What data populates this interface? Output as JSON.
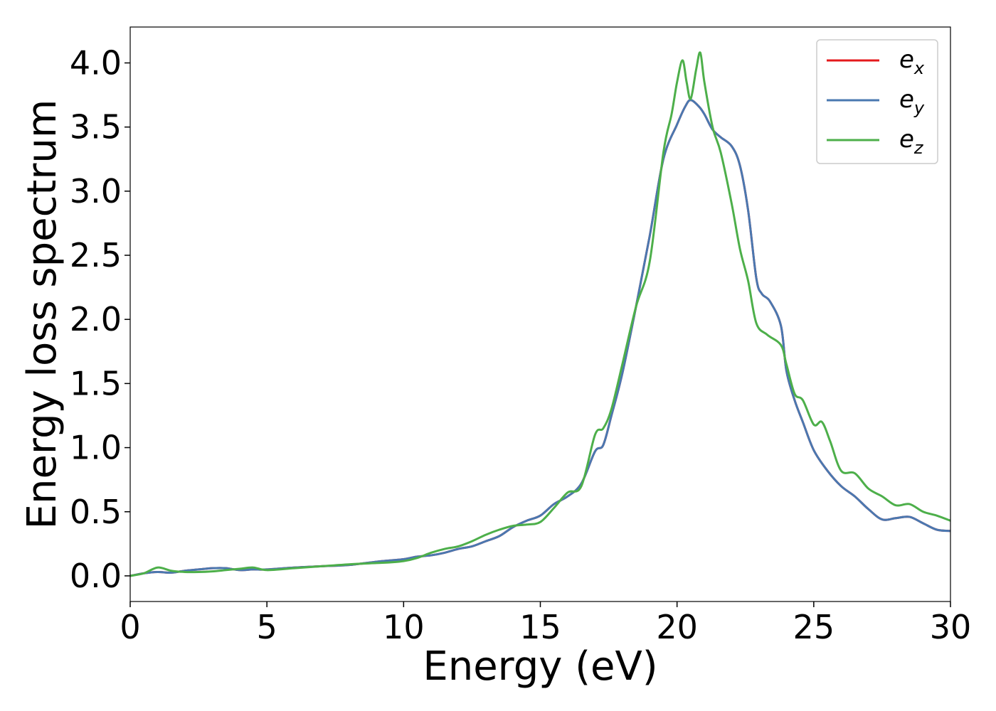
{
  "chart_data": {
    "type": "line",
    "title": "",
    "xlabel": "Energy (eV)",
    "ylabel": "Energy loss spectrum",
    "xlim": [
      0,
      30
    ],
    "ylim": [
      -0.2,
      4.28
    ],
    "xticks": [
      0,
      5,
      10,
      15,
      20,
      25,
      30
    ],
    "xtick_labels": [
      "0",
      "5",
      "10",
      "15",
      "20",
      "25",
      "30"
    ],
    "yticks": [
      0.0,
      0.5,
      1.0,
      1.5,
      2.0,
      2.5,
      3.0,
      3.5,
      4.0
    ],
    "ytick_labels": [
      "0.0",
      "0.5",
      "1.0",
      "1.5",
      "2.0",
      "2.5",
      "3.0",
      "3.5",
      "4.0"
    ],
    "grid": false,
    "legend_position": "top-right",
    "series": [
      {
        "name": "e",
        "subscript": "x",
        "color": "#e41a1c",
        "x": [
          0,
          0.5,
          1,
          1.5,
          2,
          2.5,
          3,
          3.5,
          4,
          4.5,
          5,
          6,
          7,
          8,
          9,
          9.5,
          10,
          10.5,
          11,
          11.5,
          12,
          12.5,
          13,
          13.5,
          14,
          14.5,
          15,
          15.5,
          16,
          16.5,
          17,
          17.3,
          17.6,
          18,
          18.5,
          19,
          19.5,
          20,
          20.3,
          20.5,
          20.8,
          21,
          21.3,
          21.6,
          22,
          22.3,
          22.6,
          22.9,
          23.1,
          23.4,
          23.8,
          24,
          24.3,
          24.6,
          25,
          25.5,
          26,
          26.5,
          27,
          27.5,
          28,
          28.5,
          29,
          29.5,
          30
        ],
        "y": [
          0.0,
          0.02,
          0.03,
          0.025,
          0.04,
          0.05,
          0.06,
          0.06,
          0.045,
          0.05,
          0.05,
          0.065,
          0.075,
          0.085,
          0.11,
          0.12,
          0.13,
          0.15,
          0.16,
          0.18,
          0.21,
          0.23,
          0.27,
          0.31,
          0.38,
          0.43,
          0.47,
          0.56,
          0.62,
          0.72,
          0.97,
          1.02,
          1.25,
          1.58,
          2.1,
          2.65,
          3.25,
          3.52,
          3.66,
          3.71,
          3.66,
          3.6,
          3.48,
          3.42,
          3.35,
          3.2,
          2.85,
          2.32,
          2.2,
          2.14,
          1.95,
          1.6,
          1.37,
          1.2,
          0.98,
          0.82,
          0.7,
          0.62,
          0.52,
          0.44,
          0.45,
          0.46,
          0.41,
          0.36,
          0.35
        ]
      },
      {
        "name": "e",
        "subscript": "y",
        "color": "#4a78b0",
        "x": [
          0,
          0.5,
          1,
          1.5,
          2,
          2.5,
          3,
          3.5,
          4,
          4.5,
          5,
          6,
          7,
          8,
          9,
          9.5,
          10,
          10.5,
          11,
          11.5,
          12,
          12.5,
          13,
          13.5,
          14,
          14.5,
          15,
          15.5,
          16,
          16.5,
          17,
          17.3,
          17.6,
          18,
          18.5,
          19,
          19.5,
          20,
          20.3,
          20.5,
          20.8,
          21,
          21.3,
          21.6,
          22,
          22.3,
          22.6,
          22.9,
          23.1,
          23.4,
          23.8,
          24,
          24.3,
          24.6,
          25,
          25.5,
          26,
          26.5,
          27,
          27.5,
          28,
          28.5,
          29,
          29.5,
          30
        ],
        "y": [
          0.0,
          0.02,
          0.03,
          0.025,
          0.04,
          0.05,
          0.06,
          0.06,
          0.045,
          0.05,
          0.05,
          0.065,
          0.075,
          0.085,
          0.11,
          0.12,
          0.13,
          0.15,
          0.16,
          0.18,
          0.21,
          0.23,
          0.27,
          0.31,
          0.38,
          0.43,
          0.47,
          0.56,
          0.62,
          0.72,
          0.97,
          1.02,
          1.25,
          1.58,
          2.1,
          2.65,
          3.25,
          3.52,
          3.66,
          3.71,
          3.66,
          3.6,
          3.48,
          3.42,
          3.35,
          3.2,
          2.85,
          2.32,
          2.2,
          2.14,
          1.95,
          1.6,
          1.37,
          1.2,
          0.98,
          0.82,
          0.7,
          0.62,
          0.52,
          0.44,
          0.45,
          0.46,
          0.41,
          0.36,
          0.35
        ]
      },
      {
        "name": "e",
        "subscript": "z",
        "color": "#4daf4a",
        "x": [
          0,
          0.5,
          1,
          1.5,
          2,
          2.5,
          3,
          3.5,
          4,
          4.5,
          5,
          6,
          7,
          8,
          9,
          9.5,
          10,
          10.5,
          11,
          11.5,
          12,
          12.5,
          13,
          13.5,
          14,
          14.5,
          15,
          15.5,
          16,
          16.5,
          17,
          17.3,
          17.6,
          18,
          18.5,
          19,
          19.5,
          19.8,
          20,
          20.2,
          20.35,
          20.5,
          20.7,
          20.85,
          21,
          21.3,
          21.6,
          22,
          22.3,
          22.6,
          22.9,
          23.3,
          23.8,
          24,
          24.3,
          24.6,
          25,
          25.3,
          25.6,
          26,
          26.5,
          27,
          27.5,
          28,
          28.5,
          29,
          29.5,
          30
        ],
        "y": [
          0.0,
          0.02,
          0.065,
          0.04,
          0.03,
          0.03,
          0.035,
          0.045,
          0.055,
          0.065,
          0.045,
          0.06,
          0.075,
          0.09,
          0.1,
          0.105,
          0.115,
          0.14,
          0.18,
          0.21,
          0.23,
          0.27,
          0.32,
          0.36,
          0.39,
          0.4,
          0.42,
          0.53,
          0.65,
          0.7,
          1.1,
          1.15,
          1.3,
          1.65,
          2.1,
          2.45,
          3.3,
          3.6,
          3.85,
          4.02,
          3.85,
          3.72,
          3.95,
          4.08,
          3.85,
          3.5,
          3.3,
          2.9,
          2.55,
          2.3,
          1.97,
          1.88,
          1.8,
          1.65,
          1.42,
          1.37,
          1.18,
          1.2,
          1.05,
          0.82,
          0.8,
          0.68,
          0.62,
          0.55,
          0.56,
          0.5,
          0.47,
          0.43
        ]
      }
    ]
  }
}
